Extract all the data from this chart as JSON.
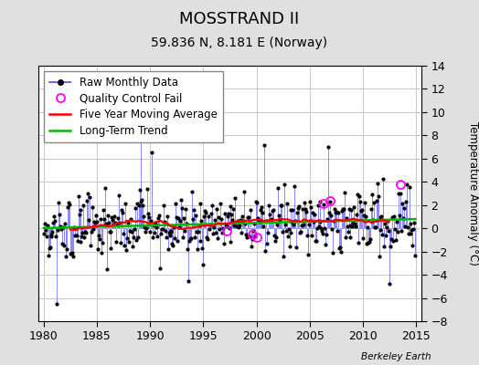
{
  "title": "MOSSTRAND II",
  "subtitle": "59.836 N, 8.181 E (Norway)",
  "ylabel": "Temperature Anomaly (°C)",
  "watermark": "Berkeley Earth",
  "xlim": [
    1979.5,
    2015.5
  ],
  "ylim": [
    -8,
    14
  ],
  "yticks": [
    -8,
    -6,
    -4,
    -2,
    0,
    2,
    4,
    6,
    8,
    10,
    12,
    14
  ],
  "xticks": [
    1980,
    1985,
    1990,
    1995,
    2000,
    2005,
    2010,
    2015
  ],
  "bg_color": "#e0e0e0",
  "plot_bg_color": "#ffffff",
  "grid_color": "#c8c8c8",
  "raw_line_color": "#6666ff",
  "raw_marker_color": "#000000",
  "ma_color": "#ff0000",
  "trend_color": "#00bb00",
  "qc_color": "#ff00ff",
  "title_fontsize": 13,
  "subtitle_fontsize": 10,
  "legend_fontsize": 8.5,
  "tick_labelsize": 9
}
